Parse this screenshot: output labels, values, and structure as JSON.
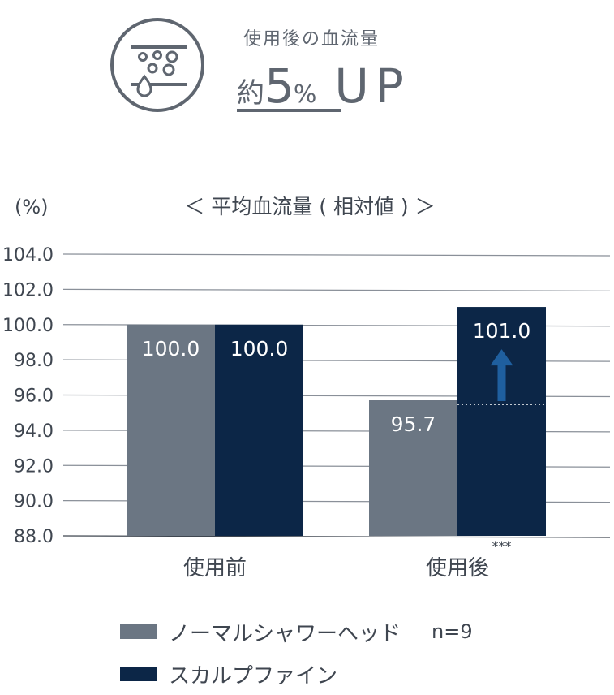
{
  "header": {
    "subtitle": "使用後の血流量",
    "approx": "約",
    "value": "5",
    "unit": "%",
    "up": "UP",
    "icon": "blood-flow-icon"
  },
  "chart_data": {
    "type": "bar",
    "title": "＜ 平均血流量 ( 相対値 ) ＞",
    "ylabel": "(%)",
    "ylim": [
      88.0,
      104.0
    ],
    "yticks": [
      "88.0",
      "90.0",
      "92.0",
      "94.0",
      "96.0",
      "98.0",
      "100.0",
      "102.0",
      "104.0"
    ],
    "categories": [
      "使用前",
      "使用後"
    ],
    "series": [
      {
        "name": "ノーマルシャワーヘッド",
        "color": "#6b7683",
        "values": [
          100.0,
          95.7
        ],
        "labels": [
          "100.0",
          "95.7"
        ]
      },
      {
        "name": "スカルプファイン",
        "color": "#0c2647",
        "values": [
          100.0,
          101.0
        ],
        "labels": [
          "100.0",
          "101.0"
        ]
      }
    ],
    "significance": "***",
    "arrow_color": "#1f5f9f",
    "grid": true,
    "legend_placement": "bottom-left"
  },
  "legend": {
    "n_label": "n=9"
  }
}
